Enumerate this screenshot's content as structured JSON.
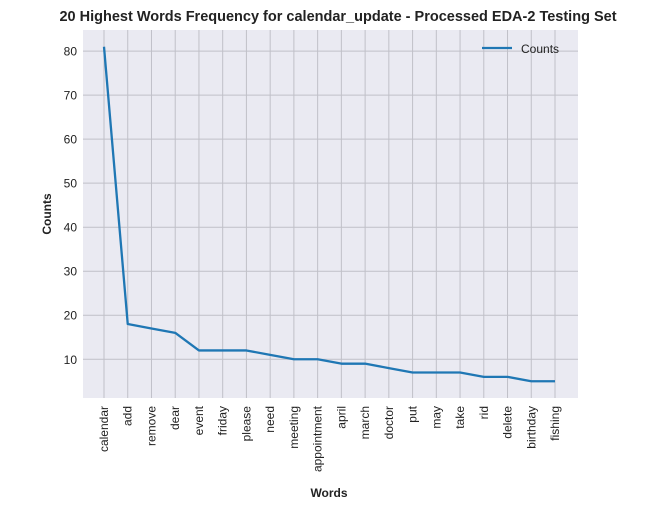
{
  "chart_data": {
    "type": "line",
    "title": "20 Highest Words Frequency for calendar_update - Processed EDA-2 Testing Set",
    "xlabel": "Words",
    "ylabel": "Counts",
    "categories": [
      "calendar",
      "add",
      "remove",
      "dear",
      "event",
      "friday",
      "please",
      "need",
      "meeting",
      "appointment",
      "april",
      "march",
      "doctor",
      "put",
      "may",
      "take",
      "rid",
      "delete",
      "birthday",
      "fishing"
    ],
    "series": [
      {
        "name": "Counts",
        "values": [
          81,
          18,
          17,
          16,
          12,
          12,
          12,
          11,
          10,
          10,
          9,
          9,
          8,
          7,
          7,
          7,
          6,
          6,
          5,
          5
        ]
      }
    ],
    "yticks": [
      10,
      20,
      30,
      40,
      50,
      60,
      70,
      80
    ],
    "ylim": [
      1.2,
      84.8
    ],
    "grid": true,
    "legend": "top-right",
    "colors": {
      "line": "#1f77b4",
      "background": "#eaeaf2",
      "grid": "#c0c0c8"
    }
  }
}
